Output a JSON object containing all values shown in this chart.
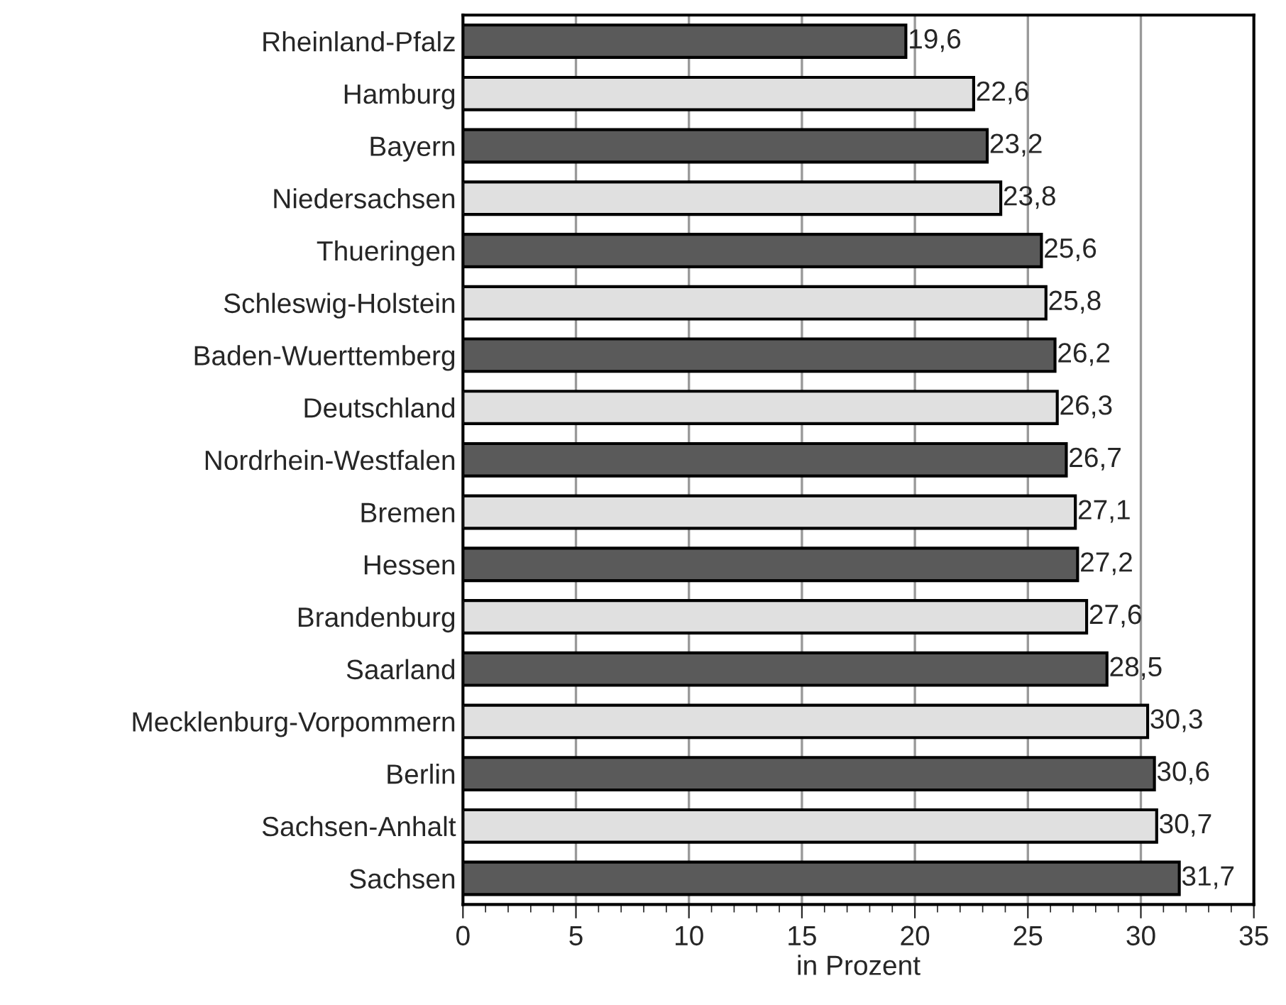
{
  "chart_data": {
    "type": "bar",
    "orientation": "horizontal",
    "xlabel": "in Prozent",
    "categories": [
      "Rheinland-Pfalz",
      "Hamburg",
      "Bayern",
      "Niedersachsen",
      "Thueringen",
      "Schleswig-Holstein",
      "Baden-Wuerttemberg",
      "Deutschland",
      "Nordrhein-Westfalen",
      "Bremen",
      "Hessen",
      "Brandenburg",
      "Saarland",
      "Mecklenburg-Vorpommern",
      "Berlin",
      "Sachsen-Anhalt",
      "Sachsen"
    ],
    "values": [
      19.6,
      22.6,
      23.2,
      23.8,
      25.6,
      25.8,
      26.2,
      26.3,
      26.7,
      27.1,
      27.2,
      27.6,
      28.5,
      30.3,
      30.6,
      30.7,
      31.7
    ],
    "value_labels": [
      "19,6",
      "22,6",
      "23,2",
      "23,8",
      "25,6",
      "25,8",
      "26,2",
      "26,3",
      "26,7",
      "27,1",
      "27,2",
      "27,6",
      "28,5",
      "30,3",
      "30,6",
      "30,7",
      "31,7"
    ],
    "colors": [
      "#5a5a5a",
      "#e0e0e0",
      "#5a5a5a",
      "#e0e0e0",
      "#5a5a5a",
      "#e0e0e0",
      "#5a5a5a",
      "#e0e0e0",
      "#5a5a5a",
      "#e0e0e0",
      "#5a5a5a",
      "#e0e0e0",
      "#5a5a5a",
      "#e0e0e0",
      "#5a5a5a",
      "#e0e0e0",
      "#5a5a5a"
    ],
    "xlim": [
      0,
      35
    ],
    "xticks": [
      0,
      5,
      10,
      15,
      20,
      25,
      30,
      35
    ],
    "grid": "x"
  }
}
